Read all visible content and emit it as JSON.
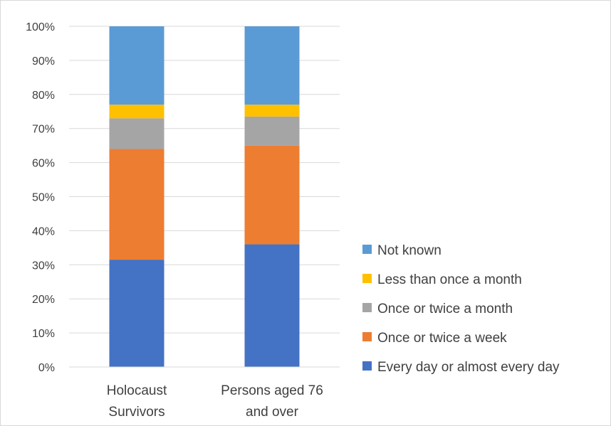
{
  "chart_data": {
    "type": "bar",
    "stacked": true,
    "categories": [
      [
        "Holocaust",
        "Survivors"
      ],
      [
        "Persons aged 76",
        "and over"
      ]
    ],
    "series": [
      {
        "name": "Every day or almost every day",
        "color": "#4472C4",
        "values": [
          31.5,
          36
        ]
      },
      {
        "name": "Once or twice a week",
        "color": "#ED7D31",
        "values": [
          32.5,
          29
        ]
      },
      {
        "name": "Once or twice a month",
        "color": "#A5A5A5",
        "values": [
          9,
          8.5
        ]
      },
      {
        "name": "Less than once a month",
        "color": "#FFC000",
        "values": [
          4,
          3.5
        ]
      },
      {
        "name": "Not known",
        "color": "#5B9BD5",
        "values": [
          23,
          23
        ]
      }
    ],
    "y_ticks": [
      "0%",
      "10%",
      "20%",
      "30%",
      "40%",
      "50%",
      "60%",
      "70%",
      "80%",
      "90%",
      "100%"
    ],
    "ylim": [
      0,
      100
    ],
    "grid": true,
    "legend_position": "right"
  }
}
